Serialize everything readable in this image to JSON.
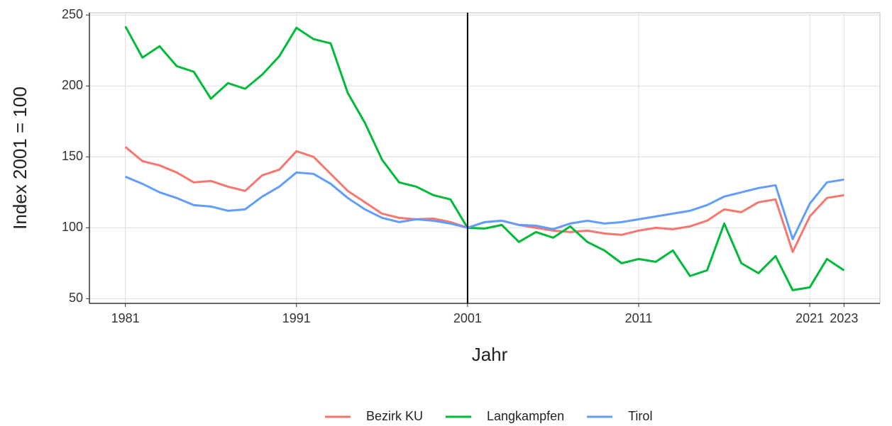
{
  "chart_data": {
    "type": "line",
    "x_label": "Jahr",
    "y_label": "Index 2001 = 100",
    "x": [
      1981,
      1982,
      1983,
      1984,
      1985,
      1986,
      1987,
      1988,
      1989,
      1990,
      1991,
      1992,
      1993,
      1994,
      1995,
      1996,
      1997,
      1998,
      1999,
      2000,
      2001,
      2002,
      2003,
      2004,
      2005,
      2006,
      2007,
      2008,
      2009,
      2010,
      2011,
      2012,
      2013,
      2014,
      2015,
      2016,
      2017,
      2018,
      2019,
      2020,
      2021,
      2022,
      2023
    ],
    "series": [
      {
        "name": "Bezirk KU",
        "color": "#F8766D",
        "values": [
          157,
          147,
          144,
          139,
          132,
          133,
          129,
          126,
          137,
          141,
          154,
          150,
          138,
          126,
          118,
          110,
          107,
          106,
          106.5,
          104,
          100,
          104,
          105,
          102,
          100,
          98,
          97,
          98,
          96,
          95,
          98,
          100,
          99,
          101,
          105,
          113,
          111,
          118,
          120,
          83,
          108,
          121,
          123
        ]
      },
      {
        "name": "Langkampfen",
        "color": "#00BA38",
        "values": [
          242,
          220,
          228,
          214,
          210,
          191,
          202,
          198,
          208,
          221,
          241,
          233,
          230,
          195,
          174,
          148,
          132,
          129,
          123,
          120,
          100,
          99.5,
          102,
          90,
          97,
          93,
          101,
          90,
          84,
          75,
          78,
          76,
          84,
          66,
          70,
          103,
          75,
          68,
          80,
          56,
          58,
          78,
          70
        ]
      },
      {
        "name": "Tirol",
        "color": "#619CFF",
        "values": [
          136,
          131,
          125,
          121,
          116,
          115,
          112,
          113,
          122,
          129,
          139,
          138,
          131,
          121,
          113,
          107,
          104,
          106,
          105,
          103,
          100,
          104,
          105,
          102,
          101.5,
          99,
          103,
          105,
          103,
          104,
          106,
          108,
          110,
          112,
          116,
          122,
          125,
          128,
          130,
          92,
          117,
          132,
          134
        ]
      }
    ],
    "xlim": [
      1978.9,
      2025.1
    ],
    "xticks": [
      1981,
      1991,
      2001,
      2011,
      2021,
      2023
    ],
    "ylim": [
      46.7,
      251.6
    ],
    "yticks": [
      50,
      100,
      150,
      200,
      250
    ],
    "vline": 2001,
    "grid": true,
    "legend": "bottom"
  }
}
